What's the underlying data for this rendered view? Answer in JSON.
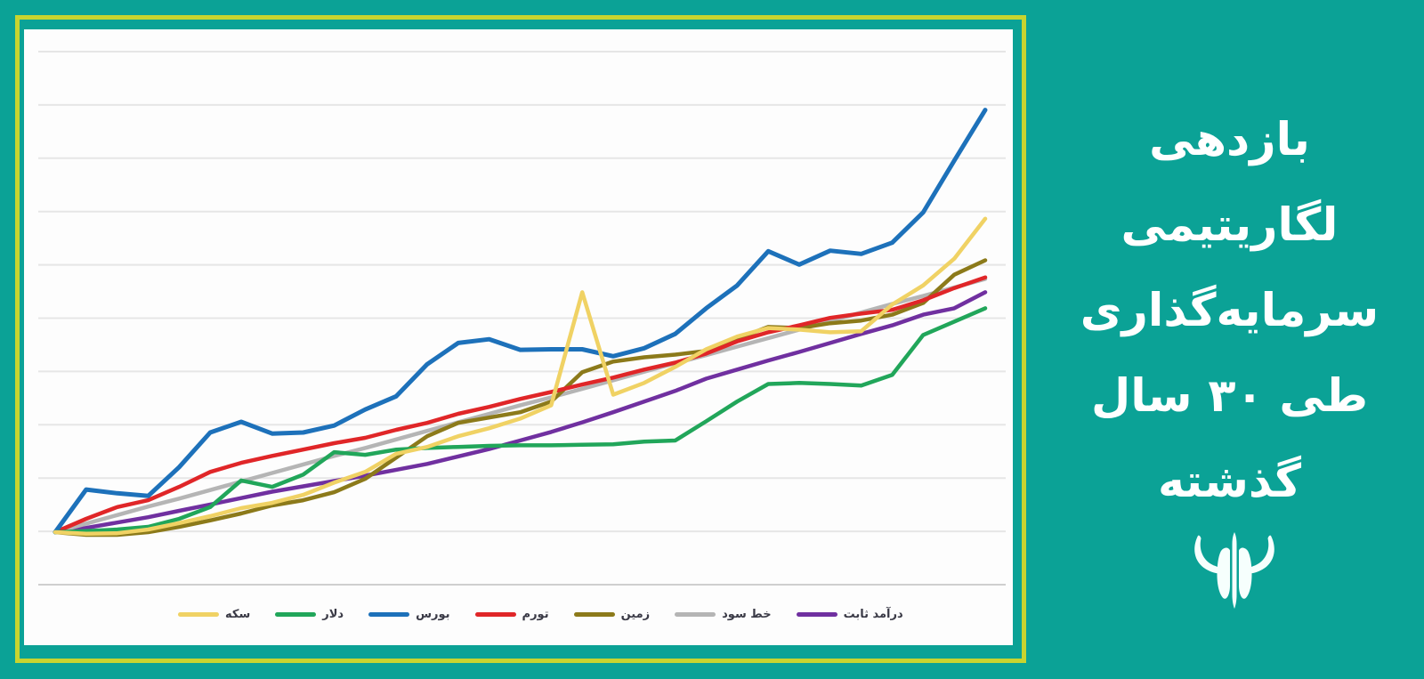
{
  "title": {
    "lines": [
      "بازدهی",
      "لگاریتیمی",
      "سرمایه‌گذاری",
      "طی ۳۰ سال",
      "گذشته"
    ]
  },
  "poster": {
    "background_color": "#0ba296",
    "border_color": "#c8d42f",
    "panel_color": "#fdfdfd",
    "title_color": "#ffffff",
    "logo": "bull-head-logo"
  },
  "chart_data": {
    "type": "line",
    "title": "",
    "xlabel": "",
    "ylabel": "",
    "x_axis": {
      "unit": "سال",
      "range": [
        0,
        30
      ],
      "points_per_series": 31,
      "tick_labels_visible": false
    },
    "y_axis": {
      "tick_labels_visible": false,
      "unit": "واحد لگاریتمی (هر خط شبکه = ۱ واحد)",
      "min": -1,
      "max": 9,
      "baseline_value": 0
    },
    "grid": {
      "horizontal_lines": 11,
      "color": "#e6e6e6",
      "bottom_line_color": "#cfcfcf",
      "vertical_lines": false
    },
    "legend_position": "bottom",
    "series": [
      {
        "name": "سکه",
        "color": "#f0d264",
        "z": 7,
        "values": [
          0,
          -0.03,
          -0.02,
          0.05,
          0.17,
          0.3,
          0.45,
          0.55,
          0.7,
          0.93,
          1.13,
          1.47,
          1.6,
          1.8,
          1.95,
          2.13,
          2.38,
          4.5,
          2.58,
          2.8,
          3.1,
          3.43,
          3.67,
          3.83,
          3.8,
          3.75,
          3.77,
          4.27,
          4.63,
          5.13,
          5.88
        ]
      },
      {
        "name": "دلار",
        "color": "#21a65a",
        "z": 6,
        "values": [
          0,
          0.02,
          0.05,
          0.1,
          0.25,
          0.47,
          0.97,
          0.85,
          1.08,
          1.5,
          1.45,
          1.55,
          1.58,
          1.6,
          1.62,
          1.63,
          1.63,
          1.64,
          1.65,
          1.7,
          1.72,
          2.08,
          2.45,
          2.78,
          2.8,
          2.78,
          2.75,
          2.95,
          3.7,
          3.95,
          4.2
        ]
      },
      {
        "name": "بورس",
        "color": "#1d71ba",
        "z": 5,
        "values": [
          0,
          0.8,
          0.73,
          0.68,
          1.22,
          1.87,
          2.07,
          1.85,
          1.87,
          2.0,
          2.3,
          2.55,
          3.15,
          3.55,
          3.62,
          3.42,
          3.43,
          3.43,
          3.3,
          3.45,
          3.72,
          4.2,
          4.63,
          5.27,
          5.02,
          5.28,
          5.22,
          5.43,
          6.0,
          6.97,
          7.92
        ]
      },
      {
        "name": "تورم",
        "color": "#e02628",
        "z": 4,
        "values": [
          0,
          0.25,
          0.47,
          0.6,
          0.85,
          1.13,
          1.3,
          1.43,
          1.55,
          1.67,
          1.77,
          1.92,
          2.05,
          2.22,
          2.35,
          2.5,
          2.63,
          2.77,
          2.9,
          3.05,
          3.18,
          3.35,
          3.58,
          3.75,
          3.88,
          4.02,
          4.1,
          4.17,
          4.35,
          4.58,
          4.78
        ]
      },
      {
        "name": "زمین",
        "color": "#8c7a1a",
        "z": 3,
        "values": [
          0,
          -0.05,
          -0.05,
          0,
          0.1,
          0.22,
          0.35,
          0.5,
          0.6,
          0.75,
          1.0,
          1.4,
          1.8,
          2.05,
          2.15,
          2.25,
          2.45,
          3.0,
          3.2,
          3.28,
          3.33,
          3.4,
          3.63,
          3.85,
          3.83,
          3.92,
          3.97,
          4.08,
          4.3,
          4.83,
          5.1
        ]
      },
      {
        "name": "خط سود",
        "color": "#b5b5b5",
        "z": 2,
        "values": [
          0,
          0.16,
          0.32,
          0.48,
          0.63,
          0.79,
          0.95,
          1.11,
          1.27,
          1.43,
          1.58,
          1.74,
          1.9,
          2.06,
          2.22,
          2.38,
          2.53,
          2.69,
          2.85,
          3.01,
          3.17,
          3.32,
          3.48,
          3.64,
          3.8,
          3.96,
          4.12,
          4.28,
          4.43,
          4.59,
          4.75
        ]
      },
      {
        "name": "درآمد ثابت",
        "color": "#7030a0",
        "z": 1,
        "values": [
          0,
          0.08,
          0.18,
          0.28,
          0.4,
          0.52,
          0.64,
          0.76,
          0.86,
          0.96,
          1.06,
          1.17,
          1.28,
          1.42,
          1.56,
          1.72,
          1.88,
          2.06,
          2.25,
          2.45,
          2.65,
          2.88,
          3.05,
          3.22,
          3.38,
          3.55,
          3.72,
          3.88,
          4.08,
          4.2,
          4.5
        ]
      }
    ]
  }
}
